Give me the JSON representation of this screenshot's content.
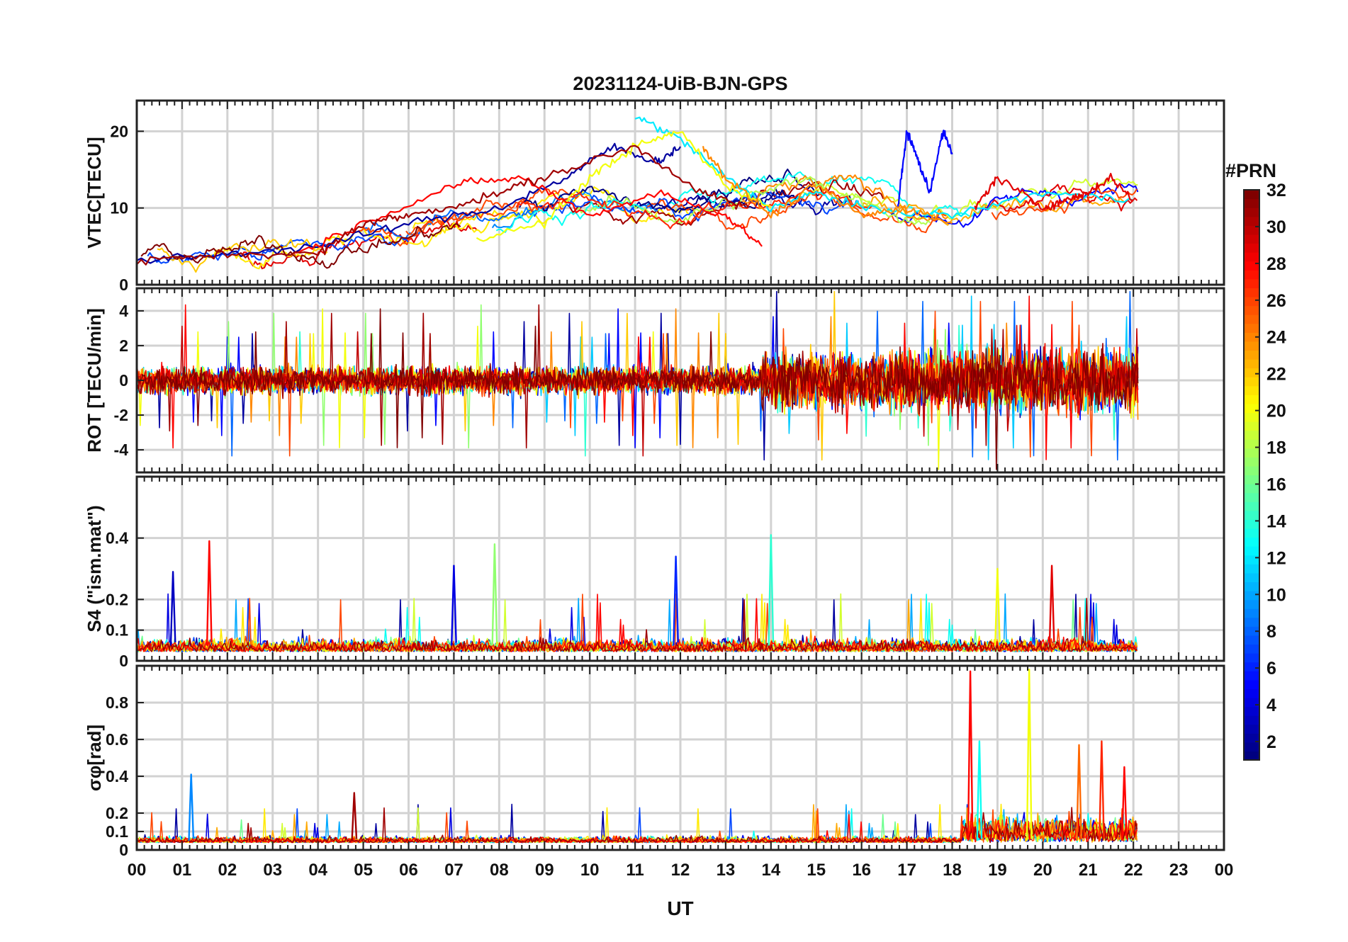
{
  "figure": {
    "title": "20231124-UiB-BJN-GPS",
    "xlabel": "UT",
    "x_ticks": [
      "00",
      "01",
      "02",
      "03",
      "04",
      "05",
      "06",
      "07",
      "08",
      "09",
      "10",
      "11",
      "12",
      "13",
      "14",
      "15",
      "16",
      "17",
      "18",
      "19",
      "20",
      "21",
      "22",
      "23",
      "00"
    ]
  },
  "colorbar": {
    "title": "#PRN",
    "range": [
      1,
      32
    ],
    "ticks": [
      "2",
      "4",
      "6",
      "8",
      "10",
      "12",
      "14",
      "16",
      "18",
      "20",
      "22",
      "24",
      "26",
      "28",
      "30",
      "32"
    ],
    "colormap": "jet"
  },
  "chart_data": [
    {
      "type": "line",
      "panel": "vtec",
      "ylabel": "VTEC[TECU]",
      "ylim": [
        0,
        24
      ],
      "xlim": [
        0,
        24
      ],
      "ytick_labels": [
        "0",
        "10",
        "20"
      ],
      "grid": true,
      "x_unit": "hours UT",
      "series_note": "one line per GPS PRN (1-32), colored by PRN",
      "representative_series": [
        {
          "prn": 2,
          "x": [
            0.0,
            2.0,
            4.0,
            6.0,
            8.0,
            9.5,
            10.5,
            11.5,
            12.0
          ],
          "y": [
            3,
            4,
            5,
            8,
            10,
            14,
            18,
            16,
            18
          ]
        },
        {
          "prn": 5,
          "x": [
            16.8,
            17.0,
            17.2,
            17.5,
            17.8,
            18.0
          ],
          "y": [
            10,
            20,
            17,
            12,
            20,
            17
          ]
        },
        {
          "prn": 12,
          "x": [
            11.0,
            12.0,
            13.0,
            14.0,
            15.0,
            16.0,
            18.0,
            20.0,
            22.0
          ],
          "y": [
            22,
            19,
            14,
            10,
            12,
            10,
            9,
            12,
            11
          ]
        },
        {
          "prn": 20,
          "x": [
            7.5,
            9.0,
            10.0,
            11.0,
            12.0,
            13.0,
            14.0
          ],
          "y": [
            6,
            8,
            14,
            18,
            20,
            13,
            10
          ]
        },
        {
          "prn": 24,
          "x": [
            12.5,
            13.0,
            14.0,
            15.0,
            16.0,
            17.0,
            18.0
          ],
          "y": [
            18,
            14,
            9,
            13,
            9,
            10,
            8
          ]
        },
        {
          "prn": 28,
          "x": [
            3.5,
            5.0,
            7.0,
            8.5,
            10.0,
            11.5,
            13.0,
            13.8
          ],
          "y": [
            4,
            8,
            13,
            14,
            9,
            12,
            9,
            5
          ]
        },
        {
          "prn": 31,
          "x": [
            0.0,
            2.0,
            4.0,
            5.0,
            6.0,
            7.5,
            9.0,
            11.0,
            12.5,
            13.5
          ],
          "y": [
            3,
            4,
            4,
            8,
            9,
            11,
            14,
            18,
            12,
            10
          ]
        },
        {
          "prn": 29,
          "x": [
            18.5,
            19.0,
            20.0,
            20.5,
            21.0,
            21.5,
            22.0
          ],
          "y": [
            10,
            14,
            10,
            11,
            12,
            14,
            11
          ]
        }
      ]
    },
    {
      "type": "line",
      "panel": "rot",
      "ylabel": "ROT [TECU/min]",
      "ylim": [
        -5.3,
        5.3
      ],
      "xlim": [
        0,
        24
      ],
      "ytick_labels": [
        "-4",
        "-2",
        "0",
        "2",
        "4"
      ],
      "grid": true,
      "activity": [
        {
          "from": 0,
          "to": 13.8,
          "amplitude": 1.5,
          "spike_max": 4.5
        },
        {
          "from": 13.8,
          "to": 16.5,
          "amplitude": 3.0,
          "spike_max": 5.3
        },
        {
          "from": 16.5,
          "to": 22.1,
          "amplitude": 3.5,
          "spike_max": 5.3
        }
      ]
    },
    {
      "type": "line",
      "panel": "s4",
      "ylabel": "S4 (\"ism.mat\")",
      "ylim": [
        0,
        0.6
      ],
      "xlim": [
        0,
        24
      ],
      "ytick_labels": [
        "0",
        "0.1",
        "0.2",
        "0.4"
      ],
      "grid": true,
      "peaks": [
        {
          "x": 0.8,
          "y": 0.29,
          "prn": 3
        },
        {
          "x": 1.6,
          "y": 0.39,
          "prn": 28
        },
        {
          "x": 7.0,
          "y": 0.31,
          "prn": 4
        },
        {
          "x": 7.9,
          "y": 0.38,
          "prn": 17
        },
        {
          "x": 11.9,
          "y": 0.34,
          "prn": 6
        },
        {
          "x": 14.0,
          "y": 0.41,
          "prn": 14
        },
        {
          "x": 19.0,
          "y": 0.3,
          "prn": 20
        },
        {
          "x": 20.2,
          "y": 0.31,
          "prn": 29
        }
      ]
    },
    {
      "type": "line",
      "panel": "sigma_phi",
      "ylabel": "σφ[rad]",
      "ylim": [
        0,
        1.0
      ],
      "xlim": [
        0,
        24
      ],
      "ytick_labels": [
        "0",
        "0.1",
        "0.2",
        "0.4",
        "0.6",
        "0.8"
      ],
      "grid": true,
      "peaks": [
        {
          "x": 1.2,
          "y": 0.41,
          "prn": 9
        },
        {
          "x": 4.8,
          "y": 0.31,
          "prn": 31
        },
        {
          "x": 18.4,
          "y": 0.97,
          "prn": 28
        },
        {
          "x": 18.6,
          "y": 0.59,
          "prn": 13
        },
        {
          "x": 19.7,
          "y": 0.98,
          "prn": 20
        },
        {
          "x": 20.8,
          "y": 0.57,
          "prn": 25
        },
        {
          "x": 21.3,
          "y": 0.59,
          "prn": 27
        },
        {
          "x": 21.8,
          "y": 0.45,
          "prn": 28
        }
      ]
    }
  ]
}
